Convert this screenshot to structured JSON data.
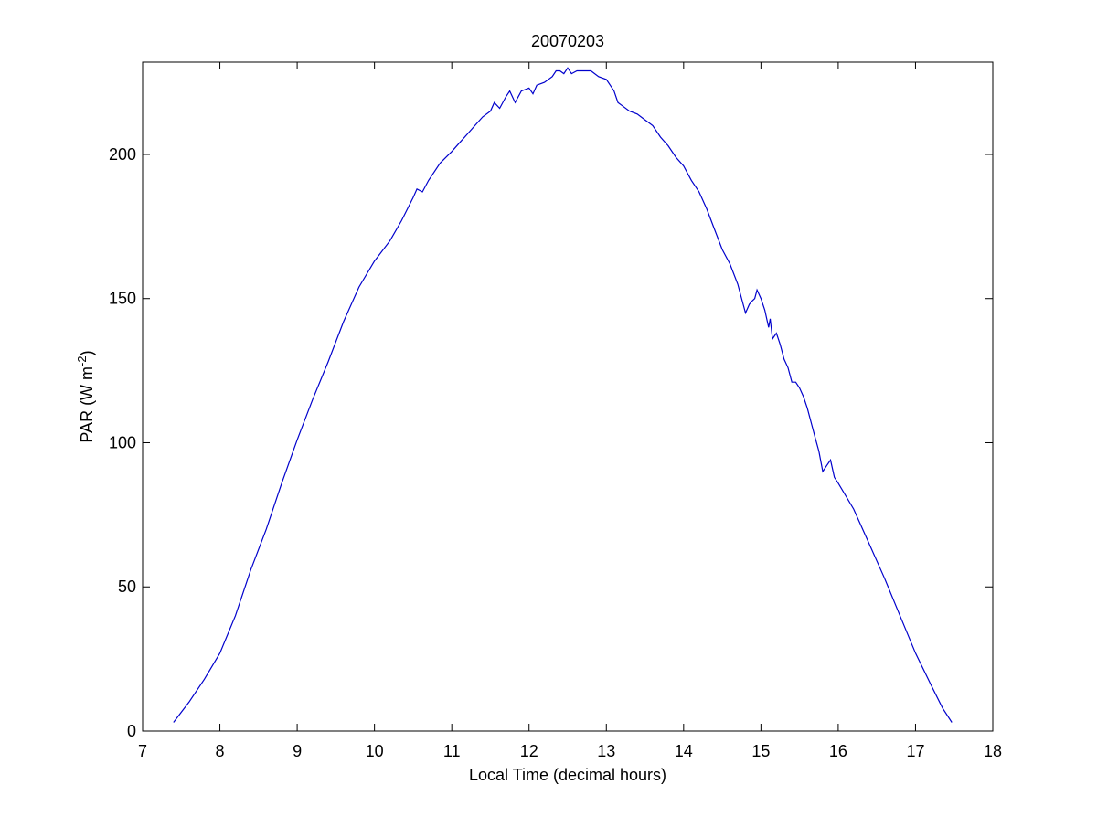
{
  "chart_data": {
    "type": "line",
    "title": "20070203",
    "xlabel": "Local Time (decimal hours)",
    "ylabel": "PAR (W m",
    "ylabel_exponent": "-2",
    "ylabel_close": ")",
    "xlim": [
      7,
      18
    ],
    "ylim": [
      0,
      232
    ],
    "xticks": [
      7,
      8,
      9,
      10,
      11,
      12,
      13,
      14,
      15,
      16,
      17,
      18
    ],
    "yticks": [
      0,
      50,
      100,
      150,
      200
    ],
    "grid": false,
    "legend": false,
    "line_color": "#0000cc",
    "series": [
      {
        "x": [
          7.4,
          7.6,
          7.8,
          8.0,
          8.2,
          8.4,
          8.6,
          8.8,
          9.0,
          9.2,
          9.4,
          9.6,
          9.8,
          10.0,
          10.2,
          10.35,
          10.5,
          10.55,
          10.62,
          10.7,
          10.85,
          11.0,
          11.1,
          11.2,
          11.3,
          11.4,
          11.5,
          11.55,
          11.62,
          11.7,
          11.75,
          11.82,
          11.9,
          12.0,
          12.05,
          12.1,
          12.2,
          12.3,
          12.35,
          12.4,
          12.45,
          12.5,
          12.55,
          12.62,
          12.7,
          12.8,
          12.9,
          13.0,
          13.05,
          13.1,
          13.15,
          13.2,
          13.3,
          13.4,
          13.5,
          13.6,
          13.7,
          13.8,
          13.9,
          14.0,
          14.1,
          14.2,
          14.3,
          14.4,
          14.5,
          14.6,
          14.7,
          14.8,
          14.85,
          14.88,
          14.92,
          14.95,
          15.0,
          15.05,
          15.1,
          15.12,
          15.15,
          15.2,
          15.25,
          15.3,
          15.35,
          15.4,
          15.45,
          15.5,
          15.55,
          15.6,
          15.65,
          15.7,
          15.75,
          15.8,
          15.85,
          15.9,
          15.95,
          16.0,
          16.2,
          16.4,
          16.6,
          16.8,
          17.0,
          17.2,
          17.35,
          17.47
        ],
        "y": [
          3,
          10,
          18,
          27,
          40,
          56,
          70,
          86,
          101,
          115,
          128,
          142,
          154,
          163,
          170,
          177,
          185,
          188,
          187,
          191,
          197,
          201,
          204,
          207,
          210,
          213,
          215,
          218,
          216,
          220,
          222,
          218,
          222,
          223,
          221,
          224,
          225,
          227,
          229,
          229,
          228,
          230,
          228,
          229,
          229,
          229,
          227,
          226,
          224,
          222,
          218,
          217,
          215,
          214,
          212,
          210,
          206,
          203,
          199,
          196,
          191,
          187,
          181,
          174,
          167,
          162,
          155,
          145,
          148,
          149,
          150,
          153,
          150,
          146,
          140,
          143,
          136,
          138,
          134,
          129,
          126,
          121,
          121,
          119,
          116,
          112,
          107,
          102,
          97,
          90,
          92,
          94,
          88,
          86,
          77,
          65,
          53,
          40,
          27,
          16,
          8,
          3
        ]
      }
    ]
  }
}
